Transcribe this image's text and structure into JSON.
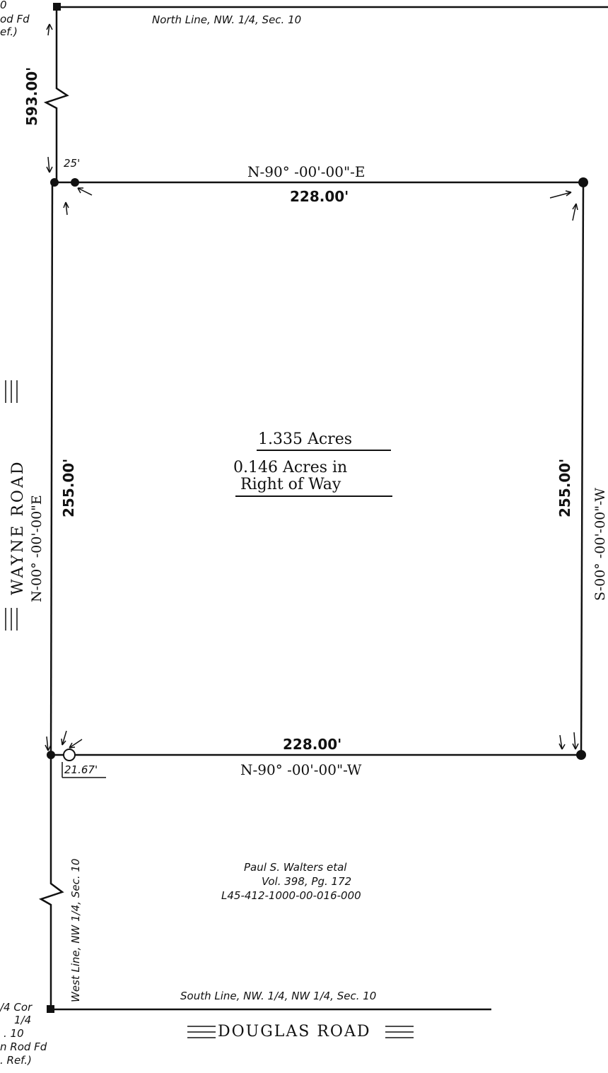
{
  "top_left_note": [
    "0",
    "od Fd",
    "ef.)"
  ],
  "north_line_label": "North Line, NW. 1/4, Sec. 10",
  "offset_top_dim": "593.00'",
  "offset_25": "25'",
  "north_bearing": "N-90° -00'-00\"-E",
  "north_distance": "228.00'",
  "area_main": "1.335 Acres",
  "area_row_line1": "0.146 Acres in",
  "area_row_line2": "Right of Way",
  "west_bearing": "N-00° -00'-00\"E",
  "west_distance": "255.00'",
  "east_distance": "255.00'",
  "east_bearing": "S-00° -00'-00\"-W",
  "road_west": "WAYNE ROAD",
  "south_distance": "228.00'",
  "south_bearing": "N-90° -00'-00\"-W",
  "offset_2167": "21.67'",
  "west_line_label": "West Line, NW 1/4, Sec. 10",
  "owner_name": "Paul S. Walters etal",
  "owner_vol": "Vol. 398, Pg. 172",
  "owner_parcel": "L45-412-1000-00-016-000",
  "south_line_label": "South Line, NW. 1/4, NW 1/4, Sec. 10",
  "road_south": "DOUGLAS ROAD",
  "bottom_left_note": [
    "/4 Cor",
    "1/4",
    ". 10",
    "n Rod Fd",
    ". Ref.)"
  ]
}
